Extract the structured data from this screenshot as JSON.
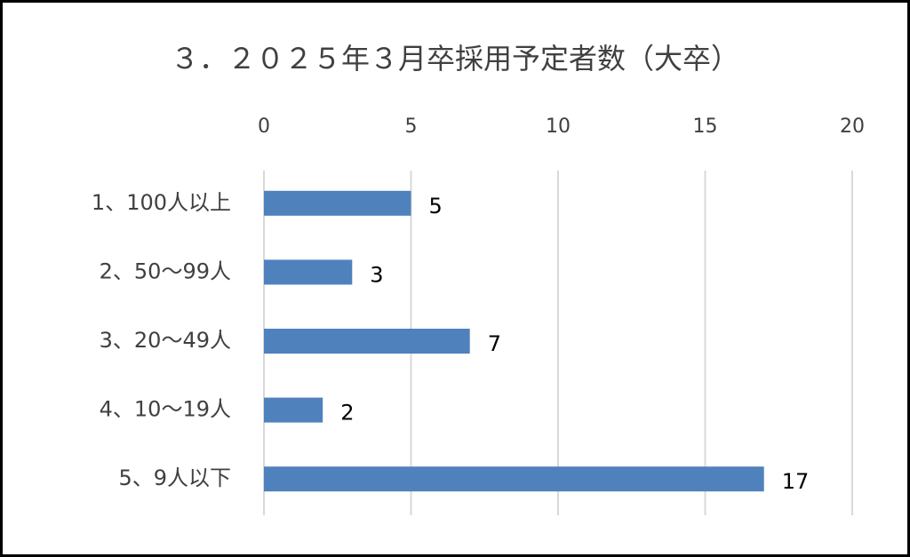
{
  "chart_data": {
    "type": "bar",
    "orientation": "horizontal",
    "title": "３．２０２５年３月卒採用予定者数（大卒）",
    "categories": [
      "1、100人以上",
      "2、50～99人",
      "3、20～49人",
      "4、10～19人",
      "5、9人以下"
    ],
    "values": [
      5,
      3,
      7,
      2,
      17
    ],
    "color": "#4f81bd",
    "xlim": [
      0,
      20
    ],
    "xticks": [
      0,
      5,
      10,
      15,
      20
    ],
    "grid": true
  }
}
